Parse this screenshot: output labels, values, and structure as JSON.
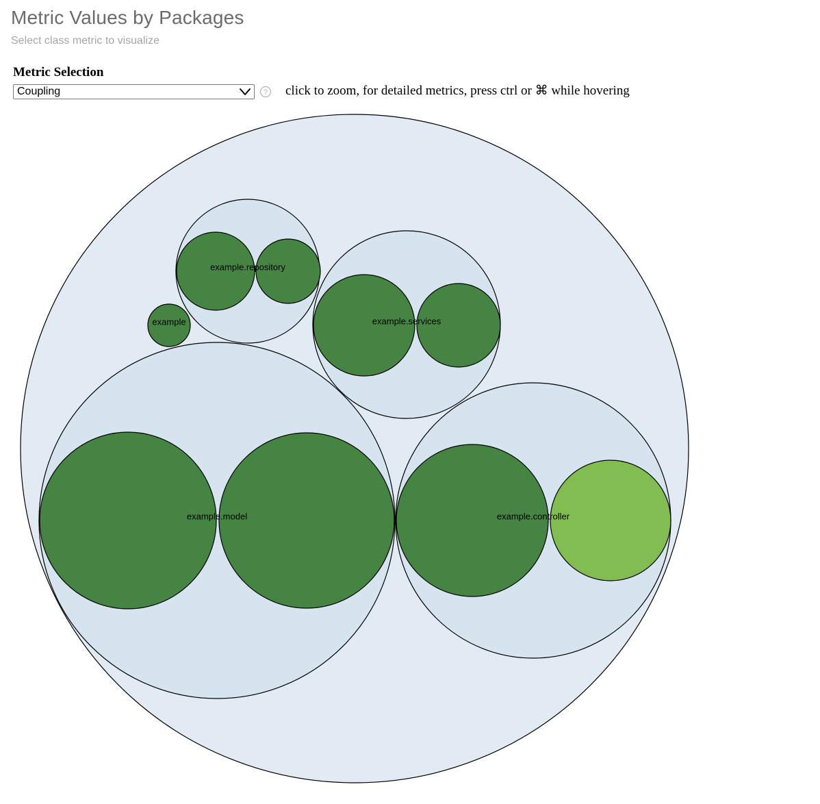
{
  "header": {
    "title": "Metric Values by Packages",
    "subtitle": "Select class metric to visualize"
  },
  "controls": {
    "metric_label": "Metric Selection",
    "metric_selected": "Coupling",
    "help_icon": "question-circle-icon",
    "dropdown_icon": "chevron-down-icon",
    "hint": "click to zoom, for detailed metrics, press ctrl or ⌘ while hovering"
  },
  "colors": {
    "root_fill": "#e2ebf4",
    "package_fill": "#d6e4ef",
    "class_dark": "#468443",
    "class_light": "#82bd51",
    "stroke": "#000000"
  },
  "chart_data": {
    "type": "circle-packing",
    "metric": "Coupling",
    "packages": [
      {
        "name": "example.repository",
        "classes": [
          {
            "level": "dark"
          },
          {
            "level": "dark"
          }
        ]
      },
      {
        "name": "example",
        "classes": [
          {
            "level": "dark"
          }
        ]
      },
      {
        "name": "example.services",
        "classes": [
          {
            "level": "dark"
          },
          {
            "level": "dark"
          }
        ]
      },
      {
        "name": "example.model",
        "classes": [
          {
            "level": "dark"
          },
          {
            "level": "dark"
          }
        ]
      },
      {
        "name": "example.controller",
        "classes": [
          {
            "level": "dark"
          },
          {
            "level": "light"
          }
        ]
      }
    ]
  }
}
